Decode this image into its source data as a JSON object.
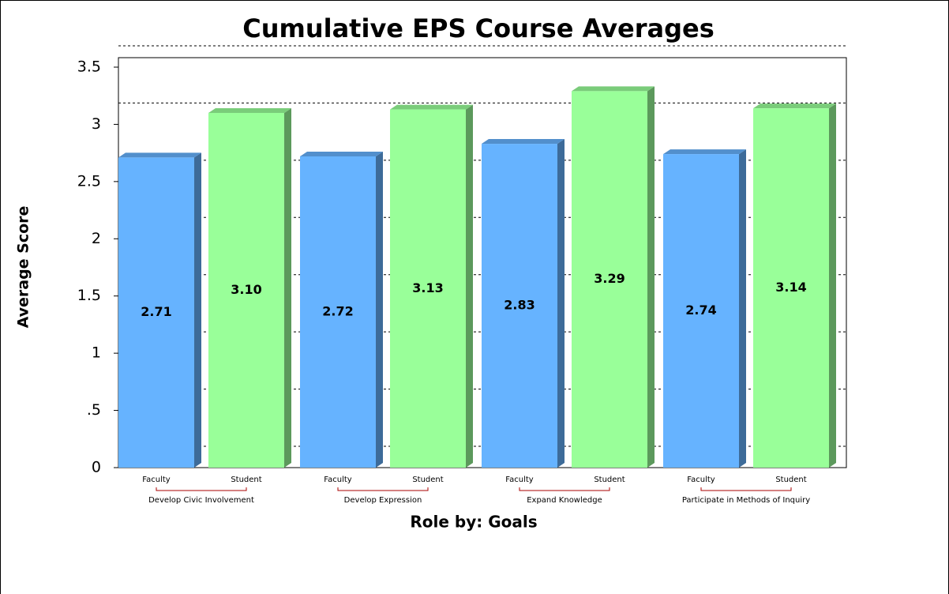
{
  "chart_data": {
    "type": "bar",
    "title": "Cumulative EPS Course Averages",
    "y_label": "Average Score",
    "x_label": "Role by: Goals",
    "categories": [
      "Develop Civic Involvement",
      "Develop Expression",
      "Expand Knowledge",
      "Participate in Methods of Inquiry"
    ],
    "series": [
      {
        "name": "Faculty",
        "color": "#66b3ff",
        "values": [
          2.71,
          2.72,
          2.83,
          2.74
        ],
        "value_labels": [
          "2.71",
          "2.72",
          "2.83",
          "2.74"
        ]
      },
      {
        "name": "Student",
        "color": "#99ff99",
        "values": [
          3.1,
          3.13,
          3.29,
          3.14
        ],
        "value_labels": [
          "3.10",
          "3.13",
          "3.29",
          "3.14"
        ]
      }
    ],
    "ylim": [
      0,
      3.5
    ],
    "yticks": [
      0,
      {
        "value": 0.5,
        "label": ".5"
      },
      1,
      1.5,
      2,
      2.5,
      3,
      3.5
    ],
    "grid": true
  }
}
